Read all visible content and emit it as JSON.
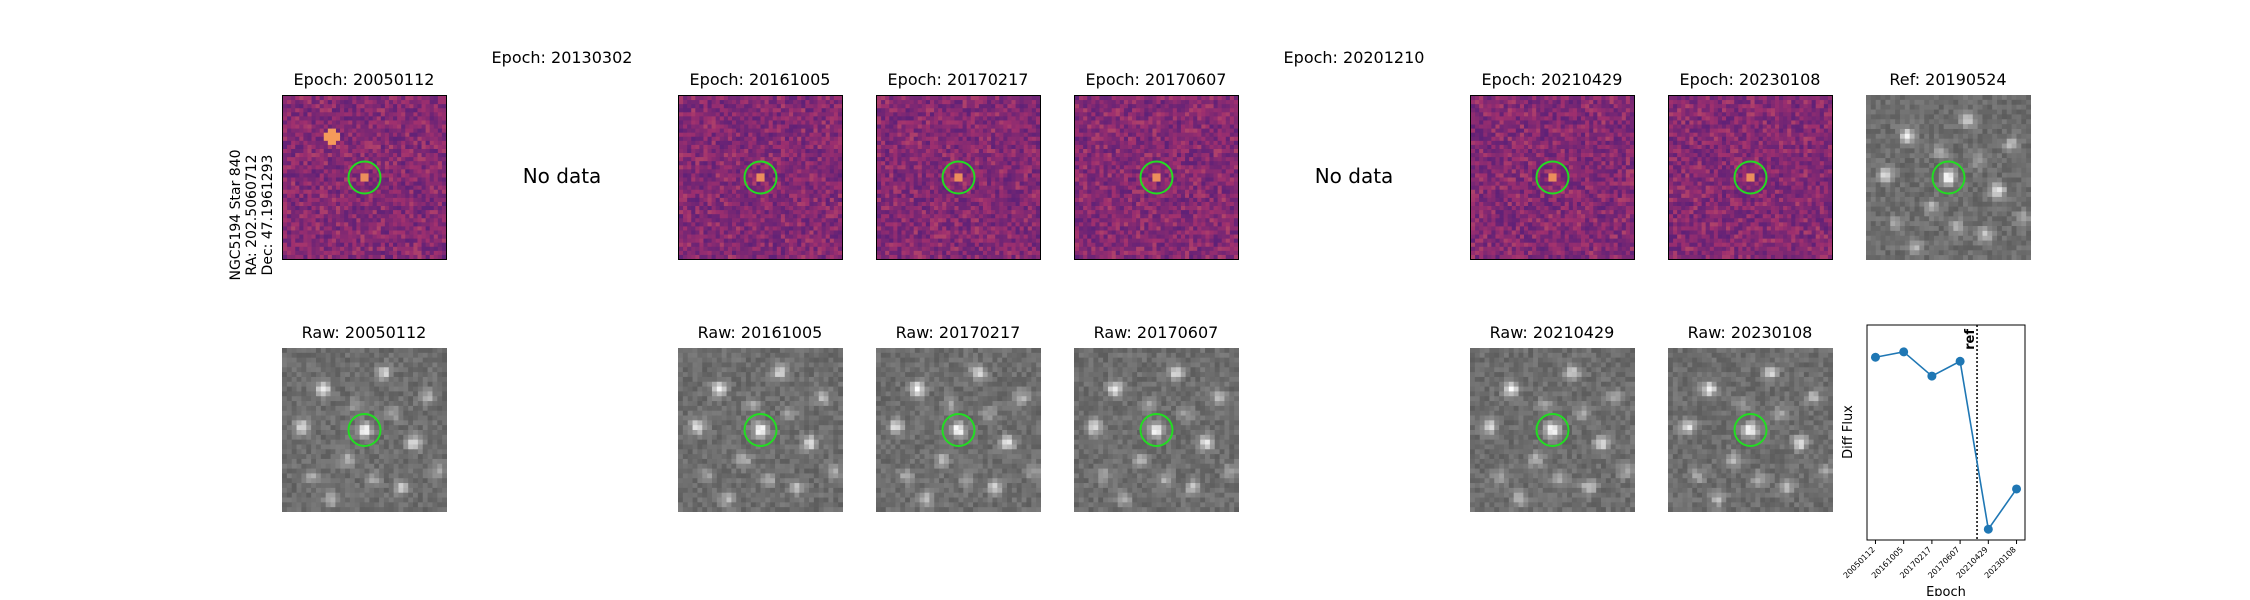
{
  "star": {
    "name": "NGC5194 Star 840",
    "ra": "RA: 202.5060712",
    "dec": "Dec: 47.1961293"
  },
  "diff_panels": [
    {
      "title": "Epoch: 20050112",
      "has_data": true
    },
    {
      "title": "Epoch: 20130302",
      "has_data": false,
      "no_data_text": "No data"
    },
    {
      "title": "Epoch: 20161005",
      "has_data": true
    },
    {
      "title": "Epoch: 20170217",
      "has_data": true
    },
    {
      "title": "Epoch: 20170607",
      "has_data": true
    },
    {
      "title": "Epoch: 20201210",
      "has_data": false,
      "no_data_text": "No data"
    },
    {
      "title": "Epoch: 20210429",
      "has_data": true
    },
    {
      "title": "Epoch: 20230108",
      "has_data": true
    },
    {
      "title": "Ref: 20190524",
      "has_data": true
    }
  ],
  "raw_panels": [
    {
      "title": "Raw: 20050112"
    },
    {
      "title": "Raw: 20161005"
    },
    {
      "title": "Raw: 20170217"
    },
    {
      "title": "Raw: 20170607"
    },
    {
      "title": "Raw: 20210429"
    },
    {
      "title": "Raw: 20230108"
    }
  ],
  "colors": {
    "circle": "#22dd22",
    "line": "#1f77b4",
    "magma_dark": "#4a1c7a",
    "magma_mid": "#a0306e",
    "magma_bright": "#f59a5a"
  },
  "chart_data": {
    "type": "line",
    "title": "",
    "xlabel": "Epoch",
    "ylabel": "Diff Flux",
    "categories": [
      "20050112",
      "20161005",
      "20170217",
      "20170607",
      "20210429",
      "20230108"
    ],
    "x_positions": [
      0,
      1,
      2,
      3,
      4,
      5
    ],
    "values": [
      0.88,
      0.92,
      0.74,
      0.85,
      -0.4,
      -0.1
    ],
    "ylim": [
      -0.48,
      1.12
    ],
    "xlim": [
      -0.3,
      5.3
    ],
    "ref_line": {
      "x": 3.6,
      "label": "ref"
    },
    "grid": false,
    "show_yticks": false
  }
}
